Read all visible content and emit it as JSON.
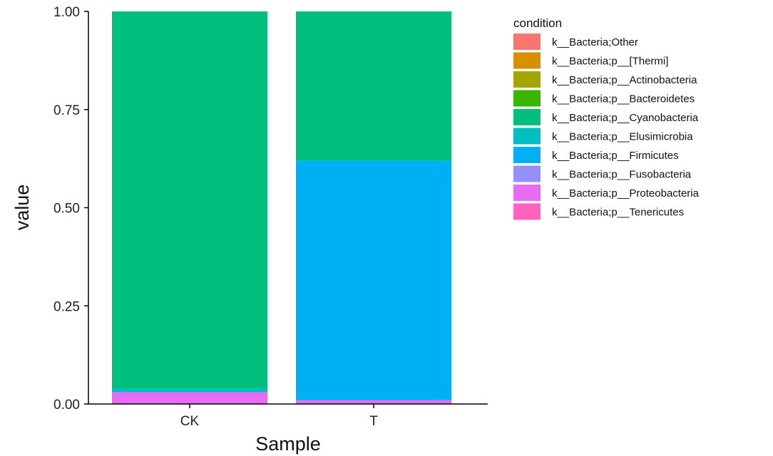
{
  "chart_data": {
    "type": "bar",
    "stacked": true,
    "categories": [
      "CK",
      "T"
    ],
    "xlabel": "Sample",
    "ylabel": "value",
    "ylim": [
      0,
      1
    ],
    "yticks": [
      "0.00",
      "0.25",
      "0.50",
      "0.75",
      "1.00"
    ],
    "grid": false,
    "legend_title": "condition",
    "legend_position": "right",
    "series": [
      {
        "name": "k__Bacteria;Other",
        "color": "#F8766D",
        "values": [
          0.0,
          0.0
        ]
      },
      {
        "name": "k__Bacteria;p__[Thermi]",
        "color": "#D89000",
        "values": [
          0.0,
          0.0
        ]
      },
      {
        "name": "k__Bacteria;p__Actinobacteria",
        "color": "#A3A500",
        "values": [
          0.0,
          0.0
        ]
      },
      {
        "name": "k__Bacteria;p__Bacteroidetes",
        "color": "#39B600",
        "values": [
          0.0,
          0.0
        ]
      },
      {
        "name": "k__Bacteria;p__Cyanobacteria",
        "color": "#00BF7D",
        "values": [
          0.96,
          0.38
        ]
      },
      {
        "name": "k__Bacteria;p__Elusimicrobia",
        "color": "#00BFC4",
        "values": [
          0.01,
          0.0
        ]
      },
      {
        "name": "k__Bacteria;p__Firmicutes",
        "color": "#00B0F6",
        "values": [
          0.0,
          0.61
        ]
      },
      {
        "name": "k__Bacteria;p__Fusobacteria",
        "color": "#9590FF",
        "values": [
          0.0,
          0.0
        ]
      },
      {
        "name": "k__Bacteria;p__Proteobacteria",
        "color": "#E76BF3",
        "values": [
          0.03,
          0.01
        ]
      },
      {
        "name": "k__Bacteria;p__Tenericutes",
        "color": "#FF62BC",
        "values": [
          0.0,
          0.0
        ]
      }
    ]
  }
}
